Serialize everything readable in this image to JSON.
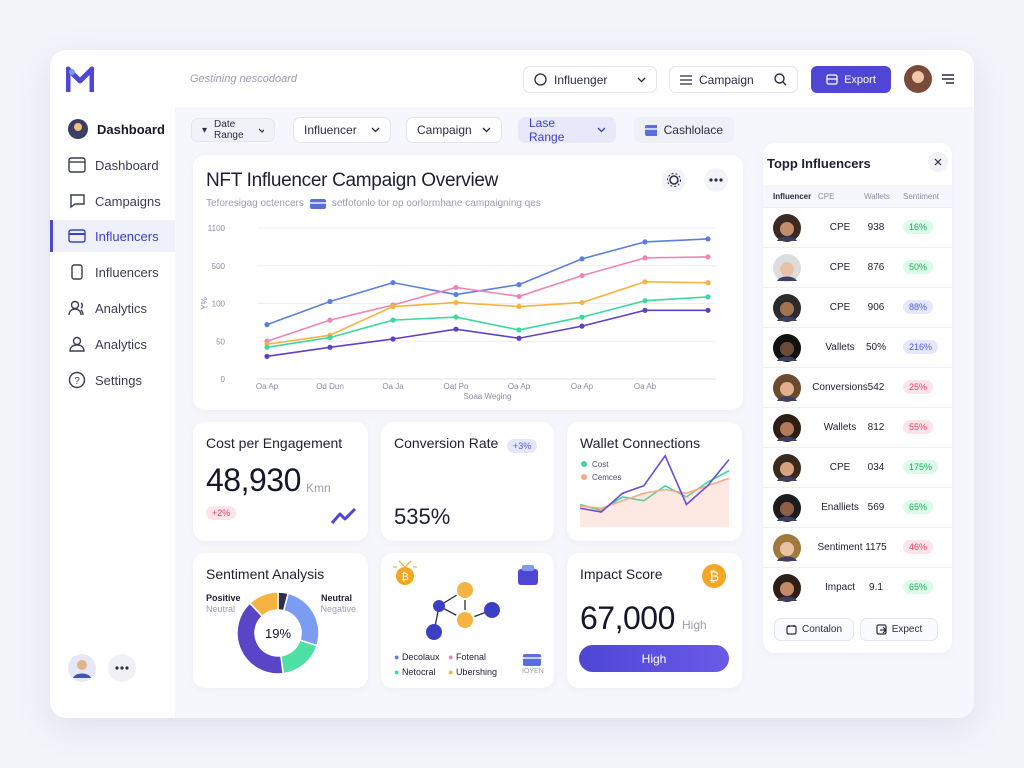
{
  "header": {
    "search": "Gestining nescodoard",
    "influencer_select": "Influenger",
    "campaign_select": "Campaign",
    "export": "Export"
  },
  "sidebar": {
    "items": [
      "Dashboard",
      "Dashboard",
      "Campaigns",
      "Influencers",
      "Influencers",
      "Analytics",
      "Analytics",
      "Settings"
    ],
    "active": 3
  },
  "filters": [
    "Date Range",
    "Influencer",
    "Campaign",
    "Lase Range",
    "Cashlolace"
  ],
  "chart_data": [
    {
      "type": "line",
      "title": "NFT Influencer Campaign Overview",
      "subtitle": "Teforesigag octencers",
      "description": "setfotonlo tor op oorlormhane campaigning qes",
      "x_label": "Soaa Weging",
      "y_label": "Y%",
      "categories": [
        "Oa Ap",
        "Od Dun",
        "Oa Ja",
        "Oat Po",
        "Oa Ap",
        "Oa Ap",
        "Oa Ab",
        null
      ],
      "ylim": [
        0,
        1100
      ],
      "yticks": [
        1100,
        500,
        100,
        50,
        0
      ],
      "grid": true,
      "series": [
        {
          "color": "#5b7fe0",
          "values": [
            72,
            121,
            321,
            195,
            300,
            610,
            879,
            926
          ]
        },
        {
          "color": "#ef84b1",
          "values": [
            50,
            78,
            98,
            270,
            175,
            395,
            625,
            640
          ]
        },
        {
          "color": "#f5b342",
          "values": [
            46,
            58,
            96,
            110,
            96,
            110,
            330,
            320
          ]
        },
        {
          "color": "#3dd99a",
          "values": [
            42,
            55,
            78,
            82,
            65,
            82,
            130,
            170
          ]
        },
        {
          "color": "#6040c8",
          "values": [
            30,
            42,
            53,
            66,
            54,
            70,
            91,
            91
          ]
        }
      ]
    },
    {
      "type": "line",
      "title": "Wallet Connections",
      "ylim": [
        0,
        100
      ],
      "series": [
        {
          "name": "Cost",
          "color": "#3dd99a",
          "values": [
            30,
            22,
            40,
            35,
            55,
            40,
            60,
            75
          ]
        },
        {
          "name": "Cemces",
          "color": "#f7a98a",
          "values": [
            28,
            25,
            35,
            45,
            50,
            45,
            55,
            65
          ],
          "area": true
        },
        {
          "color": "#6a4fd6",
          "values": [
            25,
            20,
            45,
            55,
            95,
            30,
            55,
            90
          ]
        }
      ]
    },
    {
      "type": "pie",
      "title": "Sentiment Analysis",
      "center_label": "19%",
      "values": [
        4,
        26,
        18,
        40,
        12
      ],
      "colors": [
        "#2d2f4a",
        "#7b9cf0",
        "#4ee0a4",
        "#5a45c9",
        "#f5b342"
      ],
      "annotations": [
        "Positive",
        "Neutral",
        "Neutral",
        "Negative"
      ]
    }
  ],
  "cards": {
    "cost": {
      "title": "Cost per Engagement",
      "value": "48,930",
      "unit": "Kmn",
      "badge": "+2%"
    },
    "conversion": {
      "title": "Conversion Rate",
      "badge": "+3%",
      "value": "535%"
    },
    "network": {
      "legend": [
        "Decolaux",
        "Fotenal",
        "Netocral",
        "Ubershing"
      ],
      "tag": "IOYEN"
    },
    "impact": {
      "title": "Impact Score",
      "value": "67,000",
      "level": "High",
      "button": "High"
    }
  },
  "top_influencers": {
    "title": "Topp Influencers",
    "columns": [
      "Influencer",
      "CPE",
      "Wallets",
      "Sentiment"
    ],
    "rows": [
      [
        "CPE",
        "938",
        "16%"
      ],
      [
        "CPE",
        "876",
        "50%"
      ],
      [
        "CPE",
        "906",
        "88%"
      ],
      [
        "Vallets",
        "50%",
        "216%"
      ],
      [
        "Conversions",
        "542",
        "25%"
      ],
      [
        "Wallets",
        "812",
        "55%"
      ],
      [
        "CPE",
        "034",
        "175%"
      ],
      [
        "Enalliets",
        "569",
        "65%"
      ],
      [
        "Sentiment",
        "1175",
        "46%"
      ],
      [
        "Impact",
        "9.1",
        "65%"
      ]
    ],
    "sentiment_colors": [
      "green",
      "green",
      "blue",
      "blue",
      "red",
      "red",
      "green",
      "green",
      "red",
      "green"
    ],
    "buttons": [
      "Contalon",
      "Expect"
    ]
  }
}
